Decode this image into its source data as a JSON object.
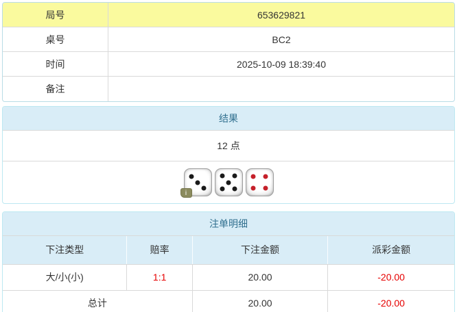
{
  "info_table": {
    "rows": [
      {
        "label": "局号",
        "value": "653629821"
      },
      {
        "label": "桌号",
        "value": "BC2"
      },
      {
        "label": "时间",
        "value": "2025-10-09 18:39:40"
      },
      {
        "label": "备注",
        "value": ""
      }
    ]
  },
  "result_panel": {
    "title": "结果",
    "points": "12 点",
    "dice": [
      {
        "value": 3,
        "color": "black"
      },
      {
        "value": 5,
        "color": "black"
      },
      {
        "value": 4,
        "color": "red"
      }
    ],
    "info_badge": "i"
  },
  "bets_panel": {
    "title": "注单明细",
    "columns": [
      "下注类型",
      "赔率",
      "下注金额",
      "派彩金额"
    ],
    "rows": [
      {
        "bet_type": "大/小(小)",
        "odds": "1:1",
        "bet_amount": "20.00",
        "payout": "-20.00"
      }
    ],
    "total": {
      "label": "总计",
      "bet_amount": "20.00",
      "payout": "-20.00"
    }
  },
  "colors": {
    "highlight_yellow": "#fafa9e",
    "panel_border": "#bce8f1",
    "panel_header_bg": "#d9edf7",
    "panel_header_text": "#31708f",
    "inner_border": "#d9d9d9",
    "negative_red": "#e60000",
    "text": "#333333",
    "pip_black": "#1a1a1a",
    "pip_red": "#c5202a"
  }
}
